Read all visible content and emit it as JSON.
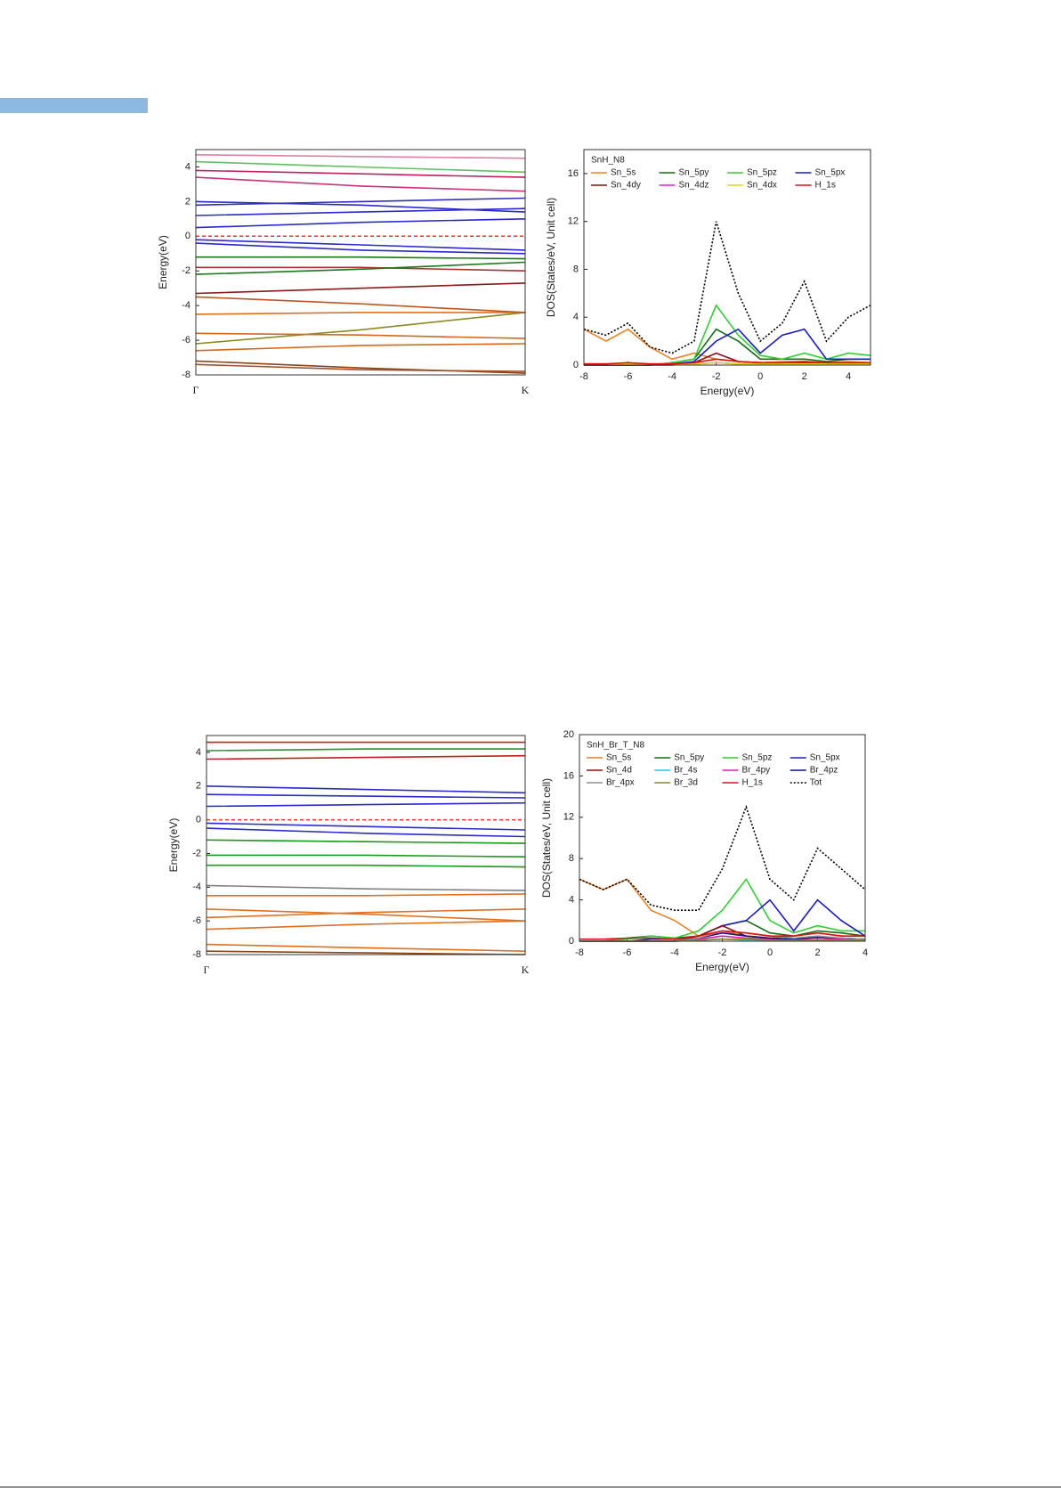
{
  "chart_data": [
    {
      "type": "line",
      "y_label": "Energy(eV)",
      "categories": [
        "Γ",
        null,
        "K"
      ],
      "ylim": [
        -8,
        5
      ],
      "yticks": [
        -8,
        -6,
        -4,
        -2,
        0,
        2,
        4
      ],
      "hline": 0,
      "hline_color": "#ff3030",
      "series": [
        {
          "color": "#8b4513",
          "values": [
            -7.2,
            -7.6,
            -7.9
          ]
        },
        {
          "color": "#a0522d",
          "values": [
            -7.4,
            -7.7,
            -7.8
          ]
        },
        {
          "color": "#d2691e",
          "values": [
            -6.6,
            -6.3,
            -6.2
          ]
        },
        {
          "color": "#8a8a20",
          "values": [
            -6.2,
            -5.4,
            -4.4
          ]
        },
        {
          "color": "#d2691e",
          "values": [
            -5.6,
            -5.7,
            -5.9
          ]
        },
        {
          "color": "#e07020",
          "values": [
            -4.5,
            -4.4,
            -4.4
          ]
        },
        {
          "color": "#c0561e",
          "values": [
            -3.5,
            -3.9,
            -4.4
          ]
        },
        {
          "color": "#8b1a1a",
          "values": [
            -3.3,
            -3.0,
            -2.7
          ]
        },
        {
          "color": "#b03030",
          "values": [
            -1.8,
            -1.8,
            -2.0
          ]
        },
        {
          "color": "#1a7a1a",
          "values": [
            -2.2,
            -1.9,
            -1.5
          ]
        },
        {
          "color": "#1a7a1a",
          "values": [
            -1.2,
            -1.2,
            -1.3
          ]
        },
        {
          "color": "#2a2ad0",
          "values": [
            -0.4,
            -0.8,
            -1.0
          ]
        },
        {
          "color": "#2a2ad0",
          "values": [
            -0.2,
            -0.5,
            -0.8
          ]
        },
        {
          "color": "#2a2ad0",
          "values": [
            0.5,
            0.8,
            1.0
          ]
        },
        {
          "color": "#2a2ad0",
          "values": [
            1.2,
            1.4,
            1.6
          ]
        },
        {
          "color": "#2a2ad0",
          "values": [
            2.0,
            1.8,
            1.4
          ]
        },
        {
          "color": "#3030c0",
          "values": [
            1.8,
            2.0,
            2.2
          ]
        },
        {
          "color": "#d0307a",
          "values": [
            3.4,
            2.9,
            2.6
          ]
        },
        {
          "color": "#c02060",
          "values": [
            3.8,
            3.6,
            3.4
          ]
        },
        {
          "color": "#60c060",
          "values": [
            4.3,
            4.0,
            3.7
          ]
        },
        {
          "color": "#e080a0",
          "values": [
            4.7,
            4.6,
            4.5
          ]
        }
      ]
    },
    {
      "type": "line",
      "title": "SnH_N8",
      "x_label": "Energy(eV)",
      "y_label": "DOS(States/eV, Unit cell)",
      "x": [
        -8,
        -7,
        -6,
        -5,
        -4,
        -3,
        -2,
        -1,
        0,
        1,
        2,
        3,
        4,
        5
      ],
      "xlim": [
        -8,
        5
      ],
      "xticks": [
        -8,
        -6,
        -4,
        -2,
        0,
        2,
        4
      ],
      "ylim": [
        0,
        18
      ],
      "yticks": [
        0,
        4,
        8,
        12,
        16
      ],
      "series": [
        {
          "name": "Sn_5s",
          "color": "#f08020",
          "values": [
            3,
            2,
            3,
            1.5,
            0.5,
            1,
            0.5,
            0.3,
            0.2,
            0.3,
            0.3,
            0.2,
            0.3,
            0.2
          ]
        },
        {
          "name": "Sn_5py",
          "color": "#107010",
          "values": [
            0,
            0,
            0,
            0,
            0.2,
            0.5,
            3,
            2,
            0.5,
            0.5,
            0.5,
            0.3,
            0.5,
            0.5
          ]
        },
        {
          "name": "Sn_5pz",
          "color": "#30d030",
          "values": [
            0,
            0,
            0,
            0,
            0.2,
            0.5,
            5,
            2.5,
            0.8,
            0.5,
            1,
            0.5,
            1,
            0.8
          ]
        },
        {
          "name": "Sn_5px",
          "color": "#1a1ad0",
          "values": [
            0,
            0,
            0,
            0,
            0.1,
            0.3,
            2,
            3,
            1,
            2.5,
            3,
            0.5,
            0.5,
            0.5
          ]
        },
        {
          "name": "Sn_4dy",
          "color": "#8b1010",
          "values": [
            0,
            0,
            0,
            0,
            0,
            0.2,
            1,
            0.3,
            0.2,
            0.1,
            0.2,
            0.1,
            0.1,
            0.1
          ]
        },
        {
          "name": "Sn_4dz",
          "color": "#e020e0",
          "values": [
            0.1,
            0.1,
            0.1,
            0.1,
            0.1,
            0.1,
            0.2,
            0.1,
            0.1,
            0.1,
            0.1,
            0.1,
            0.1,
            0.1
          ]
        },
        {
          "name": "Sn_4dx",
          "color": "#e0d020",
          "values": [
            0.1,
            0.1,
            0.1,
            0.1,
            0.1,
            0.1,
            0.2,
            0.1,
            0.1,
            0.1,
            0.1,
            0.1,
            0.1,
            0.1
          ]
        },
        {
          "name": "H_1s",
          "color": "#e01010",
          "values": [
            0.1,
            0.1,
            0.2,
            0.1,
            0.1,
            0.2,
            0.5,
            0.3,
            0.2,
            0.2,
            0.3,
            0.2,
            0.2,
            0.2
          ]
        },
        {
          "color": "#000000",
          "dash": true,
          "values": [
            3,
            2.5,
            3.5,
            1.5,
            1,
            2,
            12,
            6,
            2,
            3.5,
            7,
            2,
            4,
            5
          ]
        }
      ]
    },
    {
      "type": "line",
      "y_label": "Energy(eV)",
      "categories": [
        "Γ",
        null,
        "K"
      ],
      "ylim": [
        -8,
        5
      ],
      "yticks": [
        -8,
        -6,
        -4,
        -2,
        0,
        2,
        4
      ],
      "hline": 0,
      "hline_color": "#ff3030",
      "series": [
        {
          "color": "#8b4513",
          "values": [
            -7.8,
            -7.9,
            -8.0
          ]
        },
        {
          "color": "#e07020",
          "values": [
            -7.4,
            -7.6,
            -7.8
          ]
        },
        {
          "color": "#e07020",
          "values": [
            -6.5,
            -6.2,
            -6.0
          ]
        },
        {
          "color": "#e07020",
          "values": [
            -5.8,
            -5.5,
            -5.3
          ]
        },
        {
          "color": "#e07020",
          "values": [
            -5.3,
            -5.6,
            -6.0
          ]
        },
        {
          "color": "#e07020",
          "values": [
            -4.5,
            -4.5,
            -4.4
          ]
        },
        {
          "color": "#808080",
          "values": [
            -3.9,
            -4.1,
            -4.2
          ]
        },
        {
          "color": "#1a9a1a",
          "values": [
            -2.7,
            -2.7,
            -2.8
          ]
        },
        {
          "color": "#1a9a1a",
          "values": [
            -2.1,
            -2.1,
            -2.2
          ]
        },
        {
          "color": "#1a9a1a",
          "values": [
            -1.2,
            -1.3,
            -1.4
          ]
        },
        {
          "color": "#2a2ad0",
          "values": [
            -0.5,
            -0.8,
            -1.0
          ]
        },
        {
          "color": "#2a2ad0",
          "values": [
            -0.2,
            -0.4,
            -0.6
          ]
        },
        {
          "color": "#2a2ad0",
          "values": [
            0.8,
            0.9,
            1.0
          ]
        },
        {
          "color": "#2a2ad0",
          "values": [
            1.5,
            1.4,
            1.3
          ]
        },
        {
          "color": "#2a2ad0",
          "values": [
            2.0,
            1.8,
            1.6
          ]
        },
        {
          "color": "#c02020",
          "values": [
            3.6,
            3.7,
            3.8
          ]
        },
        {
          "color": "#3a8a3a",
          "values": [
            4.1,
            4.2,
            4.2
          ]
        },
        {
          "color": "#c02020",
          "values": [
            4.6,
            4.6,
            4.6
          ]
        }
      ]
    },
    {
      "type": "line",
      "title": "SnH_Br_T_N8",
      "x_label": "Energy(eV)",
      "y_label": "DOS(States/eV, Unit cell)",
      "x": [
        -8,
        -7,
        -6,
        -5,
        -4,
        -3,
        -2,
        -1,
        0,
        1,
        2,
        3,
        4
      ],
      "xlim": [
        -8,
        4
      ],
      "xticks": [
        -8,
        -6,
        -4,
        -2,
        0,
        2,
        4
      ],
      "ylim": [
        0,
        20
      ],
      "yticks": [
        0,
        4,
        8,
        12,
        16,
        20
      ],
      "series": [
        {
          "name": "Sn_5s",
          "color": "#f08020",
          "values": [
            6,
            5,
            6,
            3,
            2,
            0.5,
            1,
            0.5,
            0.3,
            0.5,
            0.8,
            0.5,
            0.5
          ]
        },
        {
          "name": "Sn_5py",
          "color": "#107010",
          "values": [
            0,
            0,
            0.3,
            0.5,
            0.3,
            0.5,
            1.5,
            2,
            0.8,
            0.5,
            1,
            0.8,
            0.5
          ]
        },
        {
          "name": "Sn_5pz",
          "color": "#30d030",
          "values": [
            0,
            0,
            0.2,
            0.5,
            0.3,
            1,
            3,
            6,
            2,
            0.8,
            1.5,
            1,
            1
          ]
        },
        {
          "name": "Sn_5px",
          "color": "#1a1ad0",
          "values": [
            0,
            0,
            0,
            0.2,
            0.2,
            0.5,
            1.5,
            2,
            4,
            1,
            4,
            2,
            0.5
          ]
        },
        {
          "name": "Sn_4d",
          "color": "#8b1010",
          "values": [
            0,
            0,
            0,
            0,
            0,
            0.5,
            1.5,
            0.5,
            0.3,
            0.2,
            0.3,
            0.2,
            0.2
          ]
        },
        {
          "name": "Br_4s",
          "color": "#20d0e0",
          "values": [
            0,
            0,
            0,
            0,
            0,
            0.1,
            0.2,
            0.1,
            0.1,
            0.1,
            0.1,
            0.1,
            0.1
          ]
        },
        {
          "name": "Br_4py",
          "color": "#e020a0",
          "values": [
            0,
            0,
            0,
            0,
            0,
            0.2,
            0.5,
            0.3,
            0.2,
            0.2,
            0.3,
            0.2,
            0.2
          ]
        },
        {
          "name": "Br_4pz",
          "color": "#101080",
          "values": [
            0,
            0,
            0,
            0,
            0,
            0.3,
            0.8,
            0.5,
            0.3,
            0.2,
            0.4,
            0.3,
            0.2
          ]
        },
        {
          "name": "Br_4px",
          "color": "#909090",
          "values": [
            0,
            0,
            0,
            0,
            0,
            0.3,
            1,
            0.8,
            0.5,
            0.3,
            0.5,
            0.3,
            0.2
          ]
        },
        {
          "name": "Br_3d",
          "color": "#8a8a20",
          "values": [
            0,
            0,
            0,
            0,
            0,
            0.1,
            0.2,
            0.2,
            0.1,
            0.1,
            0.1,
            0.1,
            0.1
          ]
        },
        {
          "name": "H_1s",
          "color": "#e01010",
          "values": [
            0.2,
            0.2,
            0.3,
            0.3,
            0.2,
            0.5,
            1,
            0.8,
            0.5,
            0.5,
            0.8,
            0.5,
            0.5
          ]
        },
        {
          "name": "Tot",
          "color": "#000000",
          "dash": true,
          "values": [
            6,
            5,
            6,
            3.5,
            3,
            3,
            7,
            13,
            6,
            4,
            9,
            7,
            5
          ]
        }
      ]
    }
  ]
}
